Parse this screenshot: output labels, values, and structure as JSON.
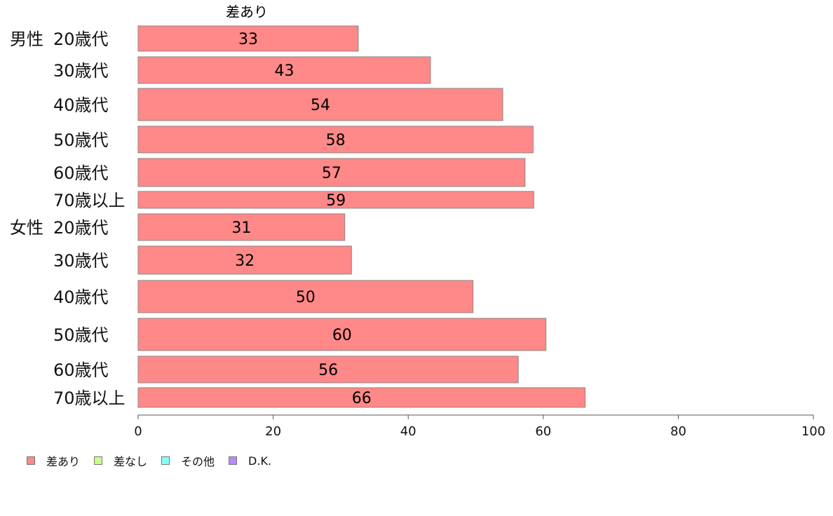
{
  "chart_data": {
    "type": "bar",
    "orientation": "horizontal",
    "stacked": true,
    "title": "",
    "series_caption": "差あり",
    "group_labels": [
      "男性",
      "女性"
    ],
    "categories": [
      "20歳代",
      "30歳代",
      "40歳代",
      "50歳代",
      "60歳代",
      "70歳以上",
      "20歳代",
      "30歳代",
      "40歳代",
      "50歳代",
      "60歳代",
      "70歳以上"
    ],
    "series": [
      {
        "name": "差あり",
        "color": "#ff8888",
        "values": [
          32.6,
          43.3,
          54.0,
          58.5,
          57.3,
          58.6,
          30.6,
          31.6,
          49.6,
          60.4,
          56.3,
          66.2
        ],
        "labels": [
          "33",
          "43",
          "54",
          "58",
          "57",
          "59",
          "31",
          "32",
          "50",
          "60",
          "56",
          "66"
        ]
      }
    ],
    "xlim": [
      0,
      100
    ],
    "xticks": [
      "0",
      "20",
      "40",
      "60",
      "80",
      "100"
    ],
    "grid": false,
    "legend": {
      "position": "bottom-left",
      "items": [
        {
          "label": "差あり",
          "color": "#ff8888"
        },
        {
          "label": "差なし",
          "color": "#ccff88"
        },
        {
          "label": "その他",
          "color": "#88ffff"
        },
        {
          "label": "D.K.",
          "color": "#bb88ff"
        }
      ]
    }
  }
}
